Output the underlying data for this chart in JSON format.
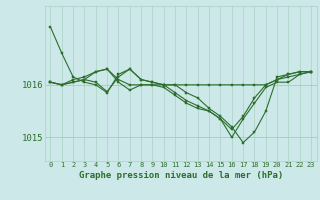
{
  "xlabel": "Graphe pression niveau de la mer (hPa)",
  "background_color": "#cce8e8",
  "grid_color_v": "#b0d4cc",
  "grid_color_h": "#a8c8c0",
  "line_color": "#2d6e2d",
  "hours": [
    0,
    1,
    2,
    3,
    4,
    5,
    6,
    7,
    8,
    9,
    10,
    11,
    12,
    13,
    14,
    15,
    16,
    17,
    18,
    19,
    20,
    21,
    22,
    23
  ],
  "lines": [
    [
      1017.1,
      1016.6,
      1016.15,
      1016.05,
      1016.0,
      1015.85,
      1016.2,
      1016.3,
      1016.1,
      1016.05,
      1016.0,
      1016.0,
      1015.85,
      1015.75,
      1015.55,
      1015.4,
      1015.2,
      1014.9,
      1015.1,
      1015.5,
      1016.15,
      1016.2,
      1016.25,
      1016.25
    ],
    [
      1016.05,
      1016.0,
      1016.1,
      1016.15,
      1016.25,
      1016.3,
      1016.1,
      1016.0,
      1016.0,
      1016.0,
      1016.0,
      1016.0,
      1016.0,
      1016.0,
      1016.0,
      1016.0,
      1016.0,
      1016.0,
      1016.0,
      1016.0,
      1016.1,
      1016.2,
      1016.25,
      1016.25
    ],
    [
      1016.05,
      1016.0,
      1016.05,
      1016.1,
      1016.05,
      1015.87,
      1016.15,
      1016.3,
      1016.1,
      1016.05,
      1016.0,
      1015.85,
      1015.7,
      1015.6,
      1015.5,
      1015.35,
      1015.15,
      1015.4,
      1015.75,
      1016.0,
      1016.1,
      1016.15,
      1016.2,
      1016.25
    ],
    [
      1016.05,
      1016.0,
      1016.05,
      1016.1,
      1016.25,
      1016.3,
      1016.05,
      1015.9,
      1016.0,
      1016.0,
      1015.95,
      1015.8,
      1015.65,
      1015.55,
      1015.5,
      1015.35,
      1015.0,
      1015.35,
      1015.65,
      1015.95,
      1016.05,
      1016.05,
      1016.2,
      1016.25
    ]
  ],
  "yticks": [
    1015.0,
    1016.0
  ],
  "ylim": [
    1014.55,
    1017.5
  ],
  "xlim": [
    -0.5,
    23.5
  ]
}
